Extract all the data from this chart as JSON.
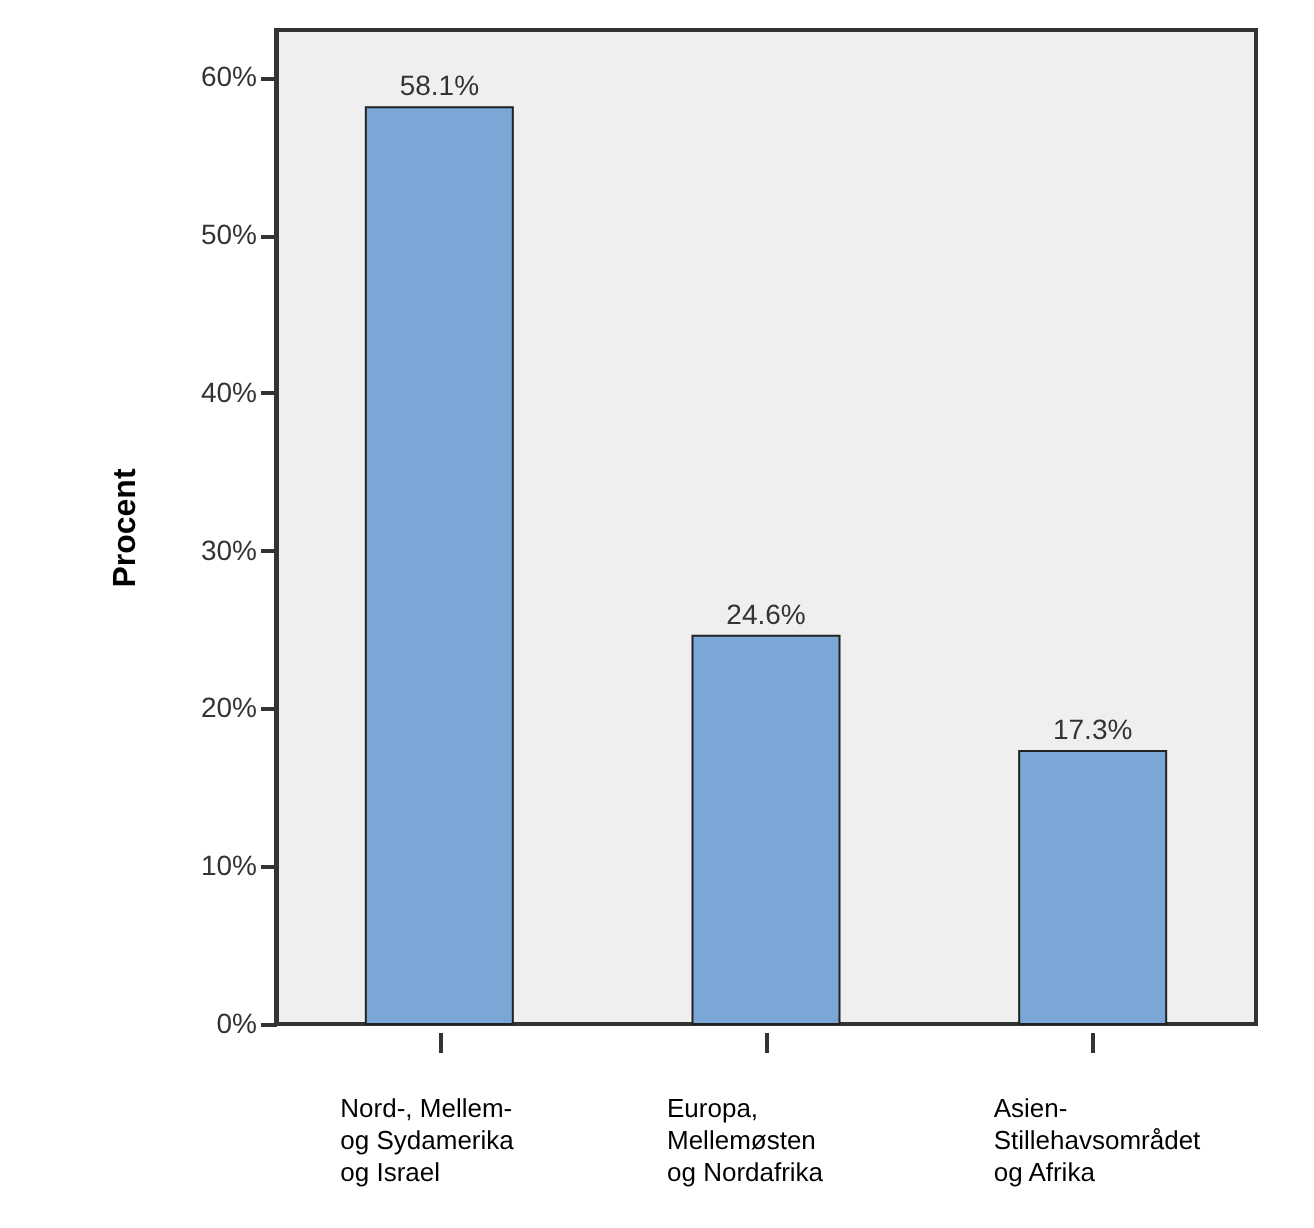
{
  "chart_data": {
    "type": "bar",
    "ylabel": "Procent",
    "categories": [
      "Nord-, Mellem-\nog Sydamerika\nog Israel",
      "Europa,\nMellemøsten\nog Nordafrika",
      "Asien-\nStillehavsområdet\nog Afrika"
    ],
    "values": [
      58.1,
      24.6,
      17.3
    ],
    "value_labels": [
      "58.1%",
      "24.6%",
      "17.3%"
    ],
    "color": "#7ba7d6",
    "ylim": [
      0,
      63
    ],
    "yticks": [
      {
        "value": 0,
        "label": "0%"
      },
      {
        "value": 10,
        "label": "10%"
      },
      {
        "value": 20,
        "label": "20%"
      },
      {
        "value": 30,
        "label": "30%"
      },
      {
        "value": 40,
        "label": "40%"
      },
      {
        "value": 50,
        "label": "50%"
      },
      {
        "value": 60,
        "label": "60%"
      }
    ]
  }
}
